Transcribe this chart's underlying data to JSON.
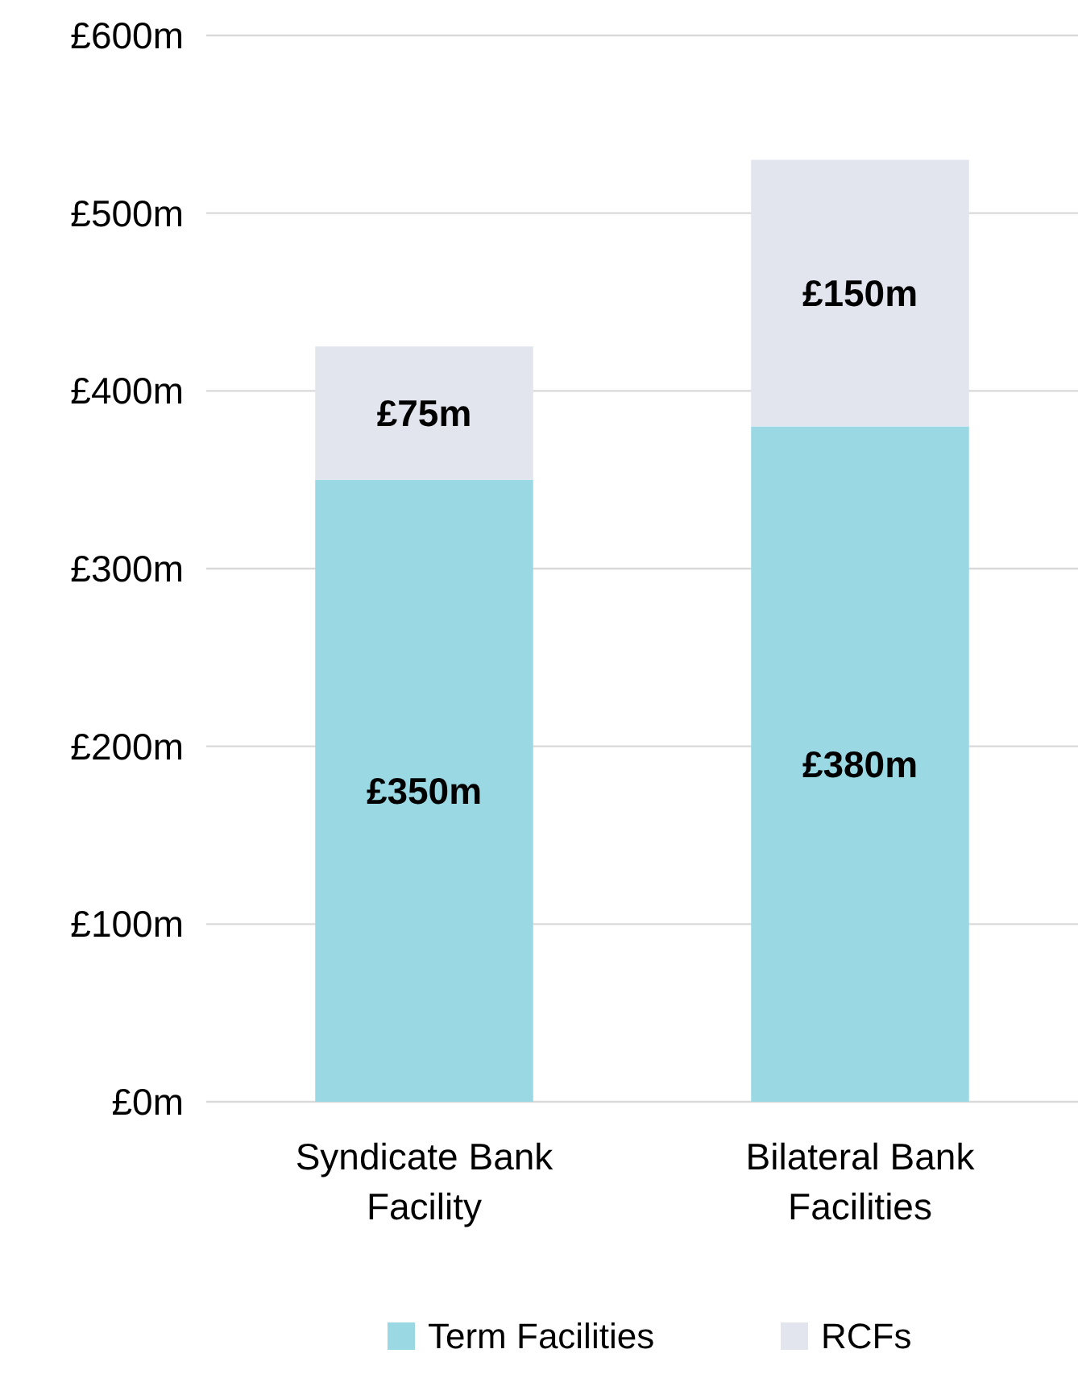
{
  "chart_data": {
    "type": "bar",
    "stacked": true,
    "categories": [
      "Syndicate Bank Facility",
      "Bilateral Bank Facilities"
    ],
    "series": [
      {
        "name": "Term Facilities",
        "color": "#9ad9e4",
        "values": [
          350,
          380
        ],
        "value_labels": [
          "£350m",
          "£380m"
        ]
      },
      {
        "name": "RCFs",
        "color": "#e3e5ee",
        "values": [
          75,
          150
        ],
        "value_labels": [
          "£75m",
          "£150m"
        ]
      }
    ],
    "ylim": [
      0,
      600
    ],
    "yticks": [
      {
        "value": 0,
        "label": "£0m"
      },
      {
        "value": 100,
        "label": "£100m"
      },
      {
        "value": 200,
        "label": "£200m"
      },
      {
        "value": 300,
        "label": "£300m"
      },
      {
        "value": 400,
        "label": "£400m"
      },
      {
        "value": 500,
        "label": "£500m"
      },
      {
        "value": 600,
        "label": "£600m"
      }
    ],
    "grid": "y",
    "legend": "bottom"
  }
}
